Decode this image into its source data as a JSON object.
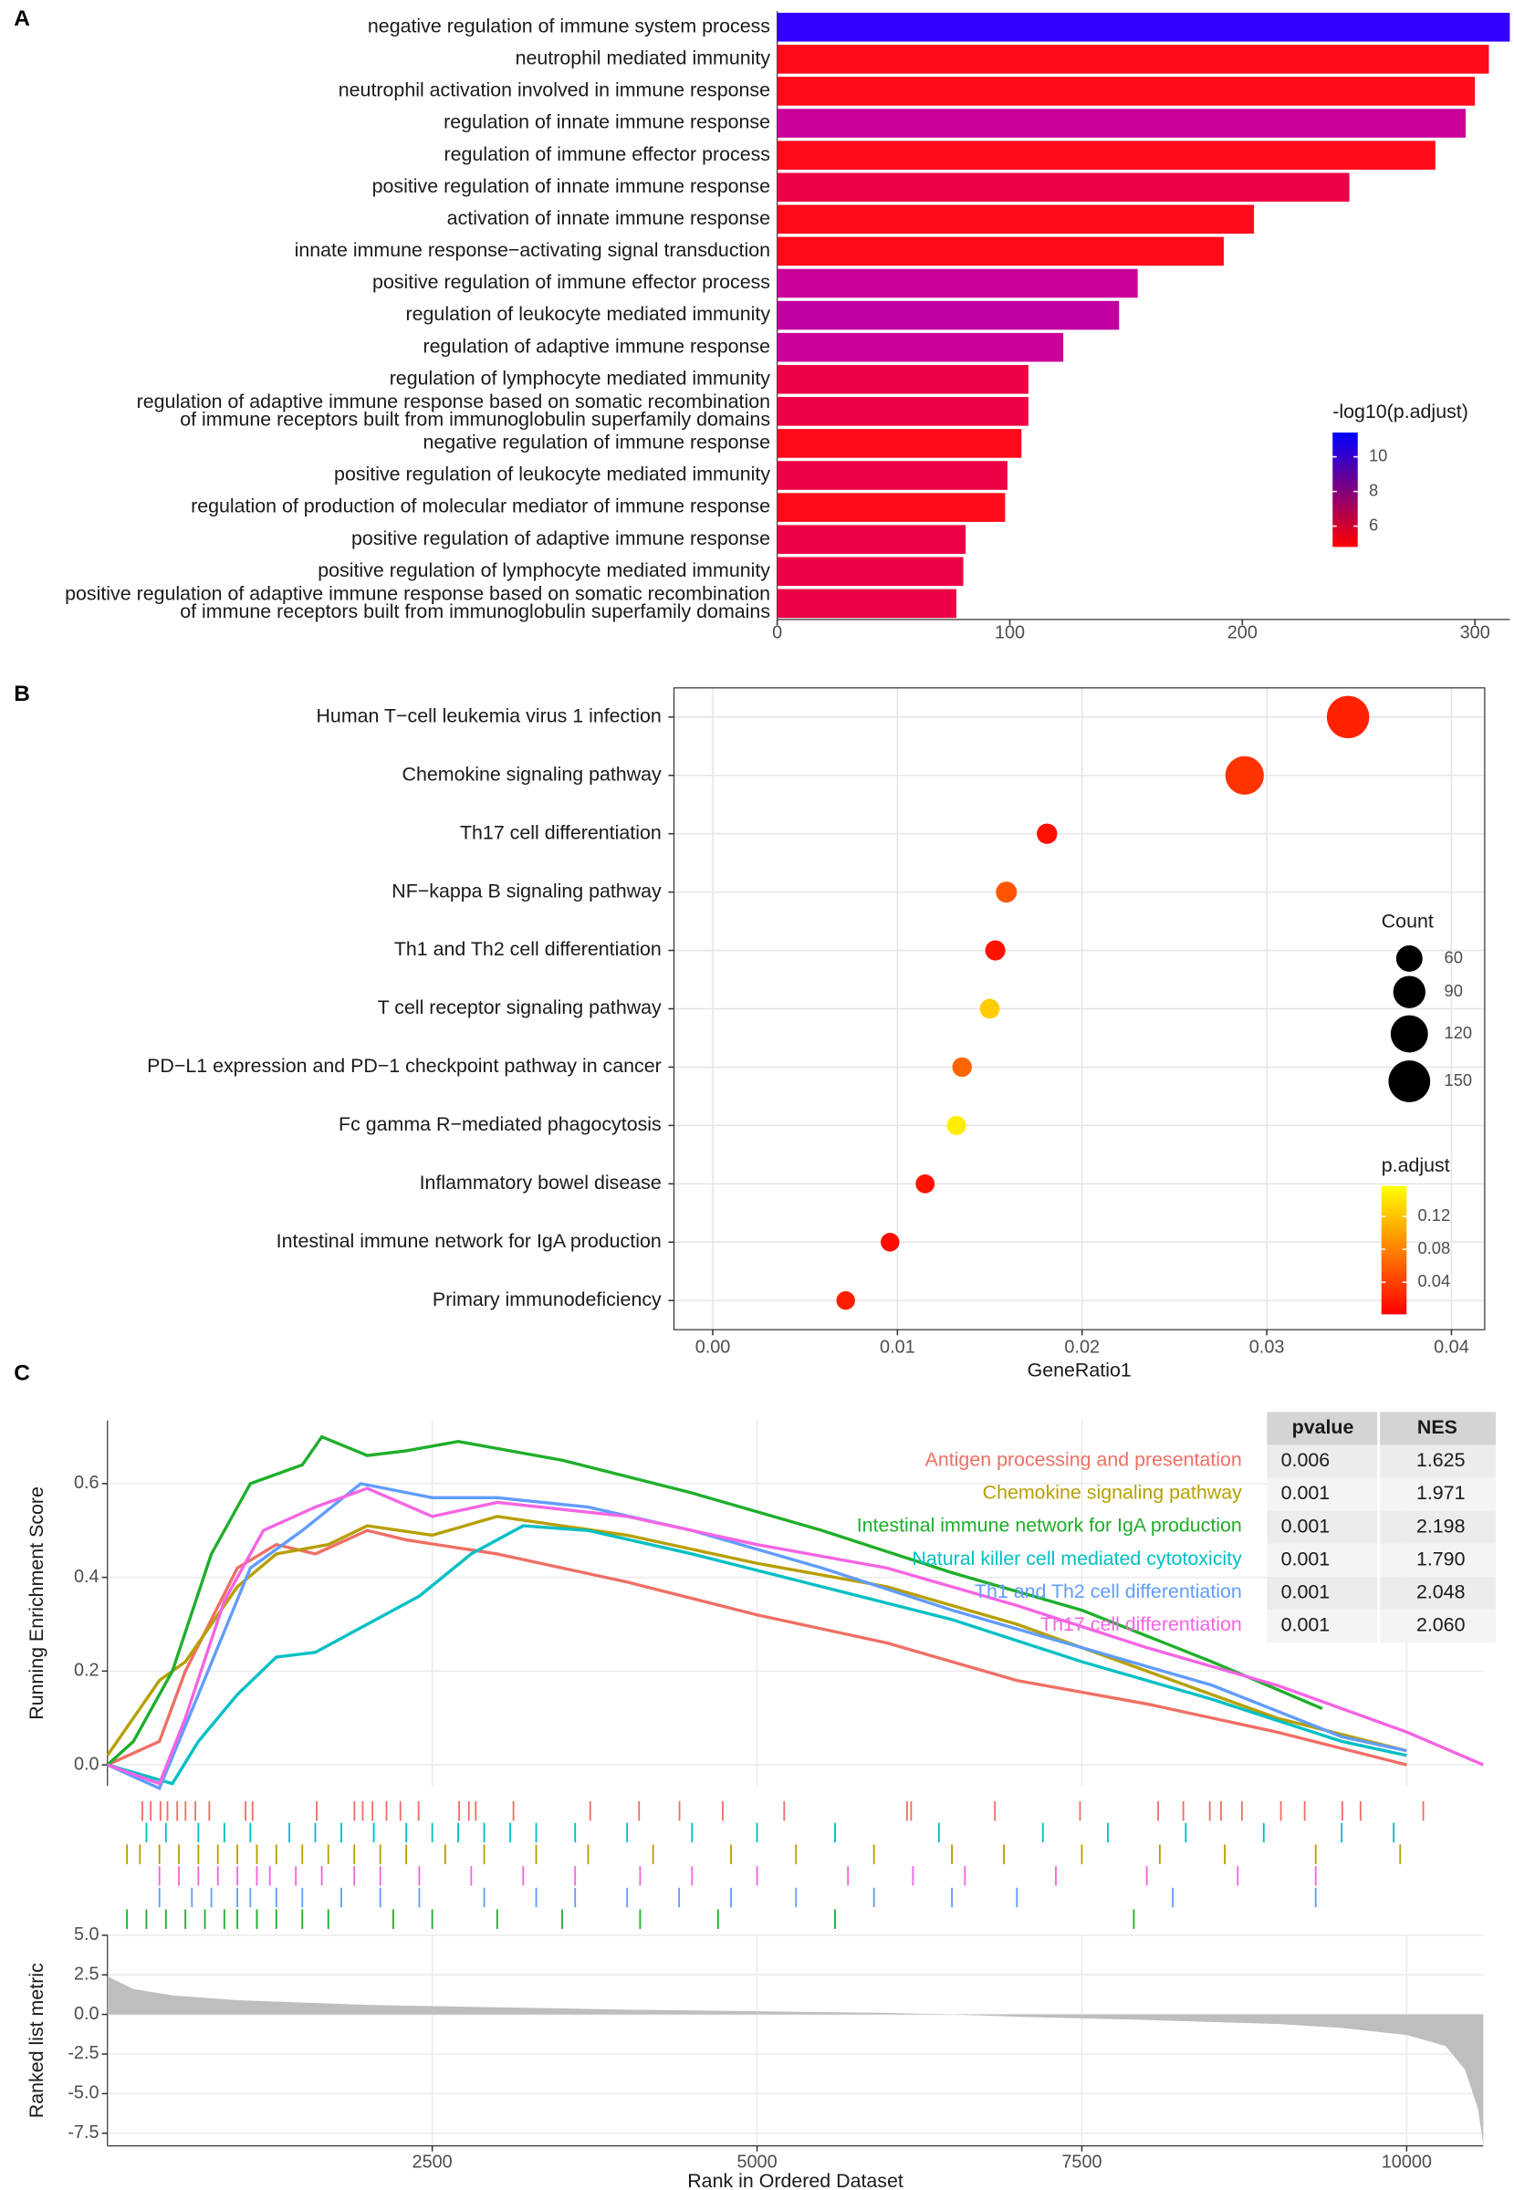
{
  "chart_data": [
    {
      "type": "bar",
      "panel": "A",
      "categories": [
        "negative regulation of immune system process",
        "neutrophil mediated immunity",
        "neutrophil activation involved in immune response",
        "regulation of innate immune response",
        "regulation of immune effector process",
        "positive regulation of innate immune response",
        "activation of innate immune response",
        "innate immune response−activating signal transduction",
        "positive regulation of immune effector process",
        "regulation of leukocyte mediated immunity",
        "regulation of adaptive immune response",
        "regulation of lymphocyte mediated immunity",
        "regulation of adaptive immune response based on somatic recombination\nof immune receptors built from immunoglobulin superfamily domains",
        "negative regulation of immune response",
        "positive regulation of leukocyte mediated immunity",
        "regulation of production of molecular mediator of immune response",
        "positive regulation of adaptive immune response",
        "positive regulation of lymphocyte mediated immunity",
        "positive regulation of adaptive immune response based on somatic recombination\nof immune receptors built from immunoglobulin superfamily domains"
      ],
      "values": [
        315,
        306,
        300,
        296,
        283,
        246,
        205,
        192,
        155,
        147,
        123,
        108,
        108,
        105,
        99,
        98,
        81,
        80,
        77
      ],
      "colors": [
        "#3300ff",
        "#ff0a1a",
        "#ff0a1a",
        "#cc0099",
        "#ff0a1a",
        "#ee0044",
        "#ff0a1a",
        "#ff0a1a",
        "#cc0099",
        "#c000a0",
        "#cc0099",
        "#ee0044",
        "#ee0044",
        "#ff0a1a",
        "#ee0044",
        "#ff0a1a",
        "#ee0044",
        "#ee0044",
        "#ee0044"
      ],
      "xlim": [
        0,
        315
      ],
      "xticks": [
        0,
        100,
        200,
        300
      ],
      "colorbar": {
        "title": "-log10(p.adjust)",
        "lim": [
          4.8,
          11.4
        ],
        "ticks": [
          6,
          8,
          10
        ],
        "colors": [
          "#ff0000",
          "#0000ff"
        ]
      }
    },
    {
      "type": "scatter",
      "panel": "B",
      "categories": [
        "Human T−cell leukemia virus 1 infection",
        "Chemokine signaling pathway",
        "Th17 cell differentiation",
        "NF−kappa B signaling pathway",
        "Th1 and Th2 cell differentiation",
        "T cell receptor signaling pathway",
        "PD−L1 expression and PD−1 checkpoint pathway in cancer",
        "Fc gamma R−mediated phagocytosis",
        "Inflammatory bowel disease",
        "Intestinal immune network for IgA production",
        "Primary immunodeficiency"
      ],
      "values": [
        0.0344,
        0.0288,
        0.0181,
        0.0159,
        0.0153,
        0.015,
        0.0135,
        0.0132,
        0.0115,
        0.0096,
        0.0072
      ],
      "sizes": [
        155,
        128,
        36,
        38,
        35,
        34,
        33,
        32,
        31,
        30,
        30
      ],
      "p_adjust": [
        0.021,
        0.032,
        0.01,
        0.053,
        0.012,
        0.126,
        0.063,
        0.146,
        0.012,
        0.008,
        0.02
      ],
      "xlabel": "GeneRatio1",
      "xlim": [
        -0.0021,
        0.0418
      ],
      "xticks": [
        {
          "value": 0,
          "label": "0.00"
        },
        {
          "value": 0.01,
          "label": "0.01"
        },
        {
          "value": 0.02,
          "label": "0.02"
        },
        {
          "value": 0.03,
          "label": "0.03"
        },
        {
          "value": 0.04,
          "label": "0.04"
        }
      ],
      "size_legend": {
        "title": "Count",
        "ticks": [
          60,
          90,
          120,
          150
        ]
      },
      "colorbar": {
        "title": "p.adjust",
        "lim": [
          0.001,
          0.157
        ],
        "ticks": [
          0.04,
          0.08,
          0.12
        ],
        "colors": [
          "#ff0000",
          "#ffff00"
        ]
      }
    },
    {
      "type": "line",
      "panel": "C",
      "ylabel": "Running Enrichment Score",
      "xlabel": "Rank in Ordered Dataset",
      "xlim": [
        0,
        10590
      ],
      "xticks": [
        2500,
        5000,
        7500,
        10000
      ],
      "ylim": [
        -0.045,
        0.735
      ],
      "yticks": [
        {
          "value": 0,
          "label": "0.0"
        },
        0.2,
        0.4,
        0.6
      ],
      "series": [
        {
          "name": "Antigen processing and presentation",
          "color": "#ef6f64",
          "x": [
            0,
            400,
            600,
            1000,
            1300,
            1600,
            2000,
            2300,
            3000,
            4000,
            5000,
            6000,
            7000,
            8000,
            9000,
            10000
          ],
          "values": [
            0,
            0.05,
            0.2,
            0.42,
            0.47,
            0.45,
            0.5,
            0.48,
            0.45,
            0.39,
            0.32,
            0.26,
            0.18,
            0.13,
            0.07,
            0
          ],
          "hits": [
            269,
            333,
            408,
            462,
            537,
            601,
            677,
            784,
            1063,
            1117,
            1611,
            1901,
            1965,
            2040,
            2148,
            2255,
            2395,
            2707,
            2782,
            2835,
            3125,
            3716,
            4092,
            4403,
            4736,
            5209,
            6154,
            6186,
            6831,
            7486,
            8087,
            8281,
            8485,
            8571,
            8732,
            9032,
            9215,
            9505,
            9645,
            10128
          ]
        },
        {
          "name": "Chemokine signaling pathway",
          "color": "#b79f00",
          "x": [
            0,
            200,
            400,
            600,
            800,
            1000,
            1300,
            1700,
            2000,
            2500,
            3000,
            4000,
            5000,
            6000,
            7000,
            8000,
            9000,
            10000
          ],
          "values": [
            0.02,
            0.1,
            0.18,
            0.22,
            0.3,
            0.38,
            0.45,
            0.47,
            0.51,
            0.49,
            0.53,
            0.49,
            0.43,
            0.38,
            0.3,
            0.2,
            0.1,
            0.03
          ],
          "hits": [
            150,
            250,
            400,
            550,
            700,
            850,
            1000,
            1150,
            1300,
            1500,
            1700,
            1900,
            2100,
            2300,
            2600,
            2900,
            3300,
            3700,
            4200,
            4800,
            5300,
            5900,
            6500,
            6900,
            7500,
            8100,
            8600,
            9300,
            9950
          ]
        },
        {
          "name": "Intestinal immune network for IgA production",
          "color": "#1fae2a",
          "x": [
            0,
            200,
            500,
            800,
            1100,
            1500,
            1650,
            2000,
            2300,
            2700,
            3500,
            4500,
            5500,
            6500,
            7500,
            8500,
            9350
          ],
          "values": [
            0,
            0.05,
            0.2,
            0.45,
            0.6,
            0.64,
            0.7,
            0.66,
            0.67,
            0.69,
            0.65,
            0.58,
            0.5,
            0.41,
            0.33,
            0.22,
            0.12
          ],
          "hits": [
            150,
            300,
            450,
            600,
            750,
            900,
            1000,
            1150,
            1300,
            1500,
            1700,
            2200,
            2500,
            3000,
            3500,
            4100,
            4700,
            5600,
            7900
          ]
        },
        {
          "name": "Natural killer cell mediated cytotoxicity",
          "color": "#00bfc4",
          "x": [
            0,
            500,
            700,
            1000,
            1300,
            1600,
            2000,
            2400,
            2800,
            3200,
            3700,
            4500,
            5500,
            6500,
            7500,
            8500,
            9500,
            10000
          ],
          "values": [
            0,
            -0.04,
            0.05,
            0.15,
            0.23,
            0.24,
            0.3,
            0.36,
            0.45,
            0.51,
            0.5,
            0.45,
            0.38,
            0.31,
            0.22,
            0.14,
            0.05,
            0.02
          ],
          "hits": [
            300,
            450,
            700,
            900,
            1100,
            1400,
            1600,
            1800,
            2050,
            2300,
            2500,
            2700,
            2900,
            3100,
            3300,
            3600,
            4000,
            4500,
            5000,
            5600,
            6400,
            7200,
            7700,
            8300,
            8900,
            9500,
            9900
          ]
        },
        {
          "name": "Th1 and Th2 cell differentiation",
          "color": "#619cff",
          "x": [
            0,
            400,
            700,
            1100,
            1500,
            1950,
            2500,
            3000,
            3700,
            4500,
            5500,
            6500,
            7500,
            8500,
            9500,
            10000
          ],
          "values": [
            0,
            -0.05,
            0.15,
            0.42,
            0.5,
            0.6,
            0.57,
            0.57,
            0.55,
            0.5,
            0.42,
            0.33,
            0.25,
            0.17,
            0.06,
            0.03
          ],
          "hits": [
            400,
            650,
            800,
            1000,
            1100,
            1300,
            1500,
            1800,
            2100,
            2400,
            2900,
            3300,
            3600,
            4000,
            4400,
            4800,
            5300,
            5900,
            6500,
            7000,
            8200,
            9300
          ]
        },
        {
          "name": "Th17 cell differentiation",
          "color": "#f564e3",
          "x": [
            0,
            400,
            600,
            900,
            1200,
            1600,
            2000,
            2500,
            3000,
            4000,
            5000,
            6000,
            7000,
            8000,
            9000,
            10000,
            10590
          ],
          "values": [
            0,
            -0.04,
            0.1,
            0.35,
            0.5,
            0.55,
            0.59,
            0.53,
            0.56,
            0.53,
            0.47,
            0.42,
            0.34,
            0.25,
            0.17,
            0.07,
            0
          ],
          "hits": [
            400,
            550,
            700,
            850,
            1000,
            1150,
            1250,
            1450,
            1650,
            1900,
            2100,
            2400,
            2800,
            3200,
            3600,
            4100,
            4500,
            5000,
            5700,
            6200,
            6600,
            7300,
            8000,
            8700,
            9300
          ]
        }
      ],
      "metric": {
        "ylabel": "Ranked list metric",
        "color": "#bebebe",
        "x": [
          0,
          200,
          500,
          1000,
          2000,
          3000,
          4000,
          5000,
          6000,
          6500,
          7000,
          8000,
          9000,
          9500,
          10000,
          10300,
          10450,
          10550,
          10590
        ],
        "values": [
          2.4,
          1.6,
          1.2,
          0.9,
          0.6,
          0.45,
          0.3,
          0.2,
          0.1,
          0,
          -0.15,
          -0.35,
          -0.6,
          -0.85,
          -1.3,
          -2,
          -3.5,
          -6,
          -8.2
        ],
        "ylim": [
          -8.3,
          5.0
        ],
        "yticks": [
          {
            "value": 5,
            "label": "5.0"
          },
          2.5,
          {
            "value": 0,
            "label": "0.0"
          },
          -2.5,
          {
            "value": -5,
            "label": "-5.0"
          },
          -7.5
        ]
      },
      "table": {
        "columns": [
          "pvalue",
          "NES"
        ],
        "rows": [
          [
            "0.006",
            "1.625"
          ],
          [
            "0.001",
            "1.971"
          ],
          [
            "0.001",
            "2.198"
          ],
          [
            "0.001",
            "1.790"
          ],
          [
            "0.001",
            "2.048"
          ],
          [
            "0.001",
            "2.060"
          ]
        ]
      }
    }
  ]
}
